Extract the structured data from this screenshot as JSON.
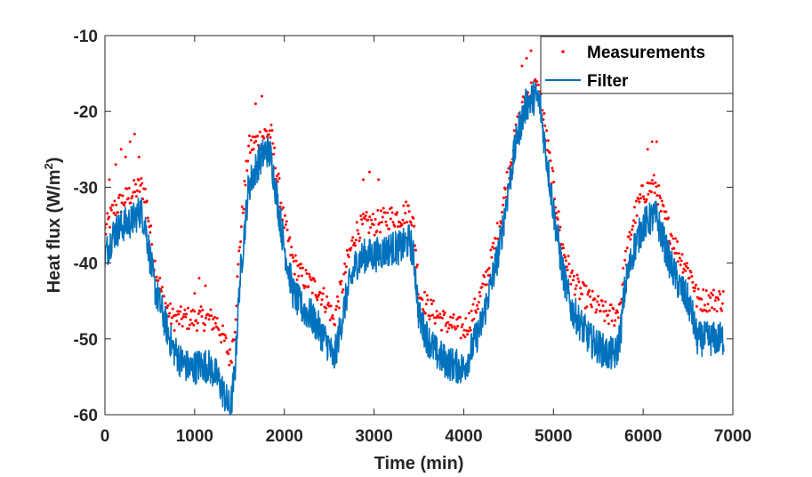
{
  "chart_data": {
    "type": "line",
    "xlabel": "Time (min)",
    "ylabel_main": "Heat flux (W/m",
    "ylabel_sup": "2",
    "ylabel_close": ")",
    "xlim": [
      0,
      7000
    ],
    "ylim": [
      -60,
      -10
    ],
    "xticks": [
      0,
      1000,
      2000,
      3000,
      4000,
      5000,
      6000,
      7000
    ],
    "yticks": [
      -60,
      -50,
      -40,
      -30,
      -20,
      -10
    ],
    "xtick_labels": [
      "0",
      "1000",
      "2000",
      "3000",
      "4000",
      "5000",
      "6000",
      "7000"
    ],
    "ytick_labels": [
      "-60",
      "-50",
      "-40",
      "-30",
      "-20",
      "-10"
    ],
    "grid": false,
    "legend_position": "top-right",
    "series": [
      {
        "name": "Measurements",
        "style": "dots",
        "color": "#ff0000",
        "x": [
          0,
          100,
          200,
          300,
          400,
          450,
          550,
          650,
          750,
          850,
          950,
          1050,
          1150,
          1250,
          1350,
          1400,
          1450,
          1500,
          1600,
          1700,
          1800,
          1850,
          1900,
          2000,
          2100,
          2200,
          2300,
          2400,
          2500,
          2550,
          2600,
          2650,
          2700,
          2800,
          2900,
          3000,
          3100,
          3200,
          3300,
          3400,
          3450,
          3500,
          3600,
          3700,
          3800,
          3900,
          4000,
          4100,
          4200,
          4300,
          4400,
          4500,
          4600,
          4700,
          4800,
          4850,
          4900,
          5000,
          5100,
          5200,
          5300,
          5400,
          5500,
          5600,
          5700,
          5750,
          5800,
          5900,
          6000,
          6100,
          6150,
          6200,
          6300,
          6400,
          6500,
          6550,
          6600,
          6700,
          6800,
          6900
        ],
        "y": [
          -36,
          -33,
          -32,
          -31,
          -30,
          -31,
          -40,
          -45,
          -47.5,
          -47.5,
          -47.5,
          -47.5,
          -47.5,
          -48,
          -51,
          -53,
          -48,
          -38,
          -25,
          -24,
          -23,
          -23,
          -27,
          -35,
          -40,
          -42,
          -43,
          -44,
          -46,
          -48,
          -45,
          -43,
          -40,
          -36,
          -35,
          -35,
          -34.5,
          -34,
          -34,
          -33,
          -36,
          -44,
          -46,
          -47,
          -48,
          -48.5,
          -49,
          -47,
          -44,
          -40,
          -35,
          -28,
          -22,
          -18,
          -17,
          -18,
          -22,
          -30,
          -38,
          -42,
          -44,
          -45,
          -46,
          -47,
          -47,
          -45,
          -40,
          -34,
          -31,
          -30,
          -30,
          -33,
          -36,
          -39,
          -41,
          -42,
          -45,
          -45,
          -45,
          -45
        ],
        "outliers_x": [
          50,
          120,
          180,
          230,
          280,
          330,
          380,
          1000,
          1050,
          1120,
          1680,
          1750,
          2880,
          2950,
          3050,
          4650,
          4700,
          4750,
          6050,
          6100,
          6150
        ],
        "outliers_y": [
          -29,
          -27,
          -25,
          -26,
          -24,
          -23,
          -26,
          -44,
          -42,
          -43,
          -19,
          -18,
          -29,
          -28,
          -29,
          -14,
          -13,
          -12,
          -25,
          -24,
          -24
        ]
      },
      {
        "name": "Filter",
        "style": "line",
        "color": "#0072bd",
        "x": [
          0,
          100,
          200,
          300,
          400,
          450,
          550,
          650,
          750,
          850,
          950,
          1050,
          1150,
          1250,
          1350,
          1400,
          1450,
          1500,
          1600,
          1700,
          1800,
          1850,
          1900,
          2000,
          2100,
          2200,
          2300,
          2400,
          2500,
          2550,
          2600,
          2650,
          2700,
          2800,
          2900,
          3000,
          3100,
          3200,
          3300,
          3400,
          3450,
          3500,
          3600,
          3700,
          3800,
          3900,
          4000,
          4100,
          4200,
          4300,
          4400,
          4500,
          4600,
          4700,
          4800,
          4850,
          4900,
          5000,
          5100,
          5200,
          5300,
          5400,
          5500,
          5600,
          5700,
          5750,
          5800,
          5900,
          6000,
          6100,
          6150,
          6200,
          6300,
          6400,
          6500,
          6550,
          6600,
          6700,
          6800,
          6900
        ],
        "y": [
          -39,
          -36,
          -35,
          -34.5,
          -33,
          -35,
          -43,
          -47,
          -51,
          -53,
          -54,
          -53.5,
          -53.5,
          -55,
          -58,
          -59.5,
          -54,
          -43,
          -30,
          -27,
          -25,
          -26,
          -30,
          -38,
          -44,
          -46,
          -47,
          -49,
          -51,
          -53,
          -50,
          -47,
          -44,
          -40,
          -39,
          -39,
          -38.5,
          -38,
          -38,
          -37,
          -40,
          -47,
          -50,
          -52,
          -53,
          -53.5,
          -54,
          -51,
          -48,
          -43,
          -38,
          -30,
          -23,
          -19,
          -18,
          -19,
          -24,
          -33,
          -41,
          -46,
          -48,
          -50,
          -51,
          -52,
          -52,
          -49,
          -43,
          -38,
          -35,
          -34,
          -34,
          -36,
          -40,
          -43,
          -45,
          -47,
          -50,
          -50,
          -50,
          -50
        ]
      }
    ]
  }
}
